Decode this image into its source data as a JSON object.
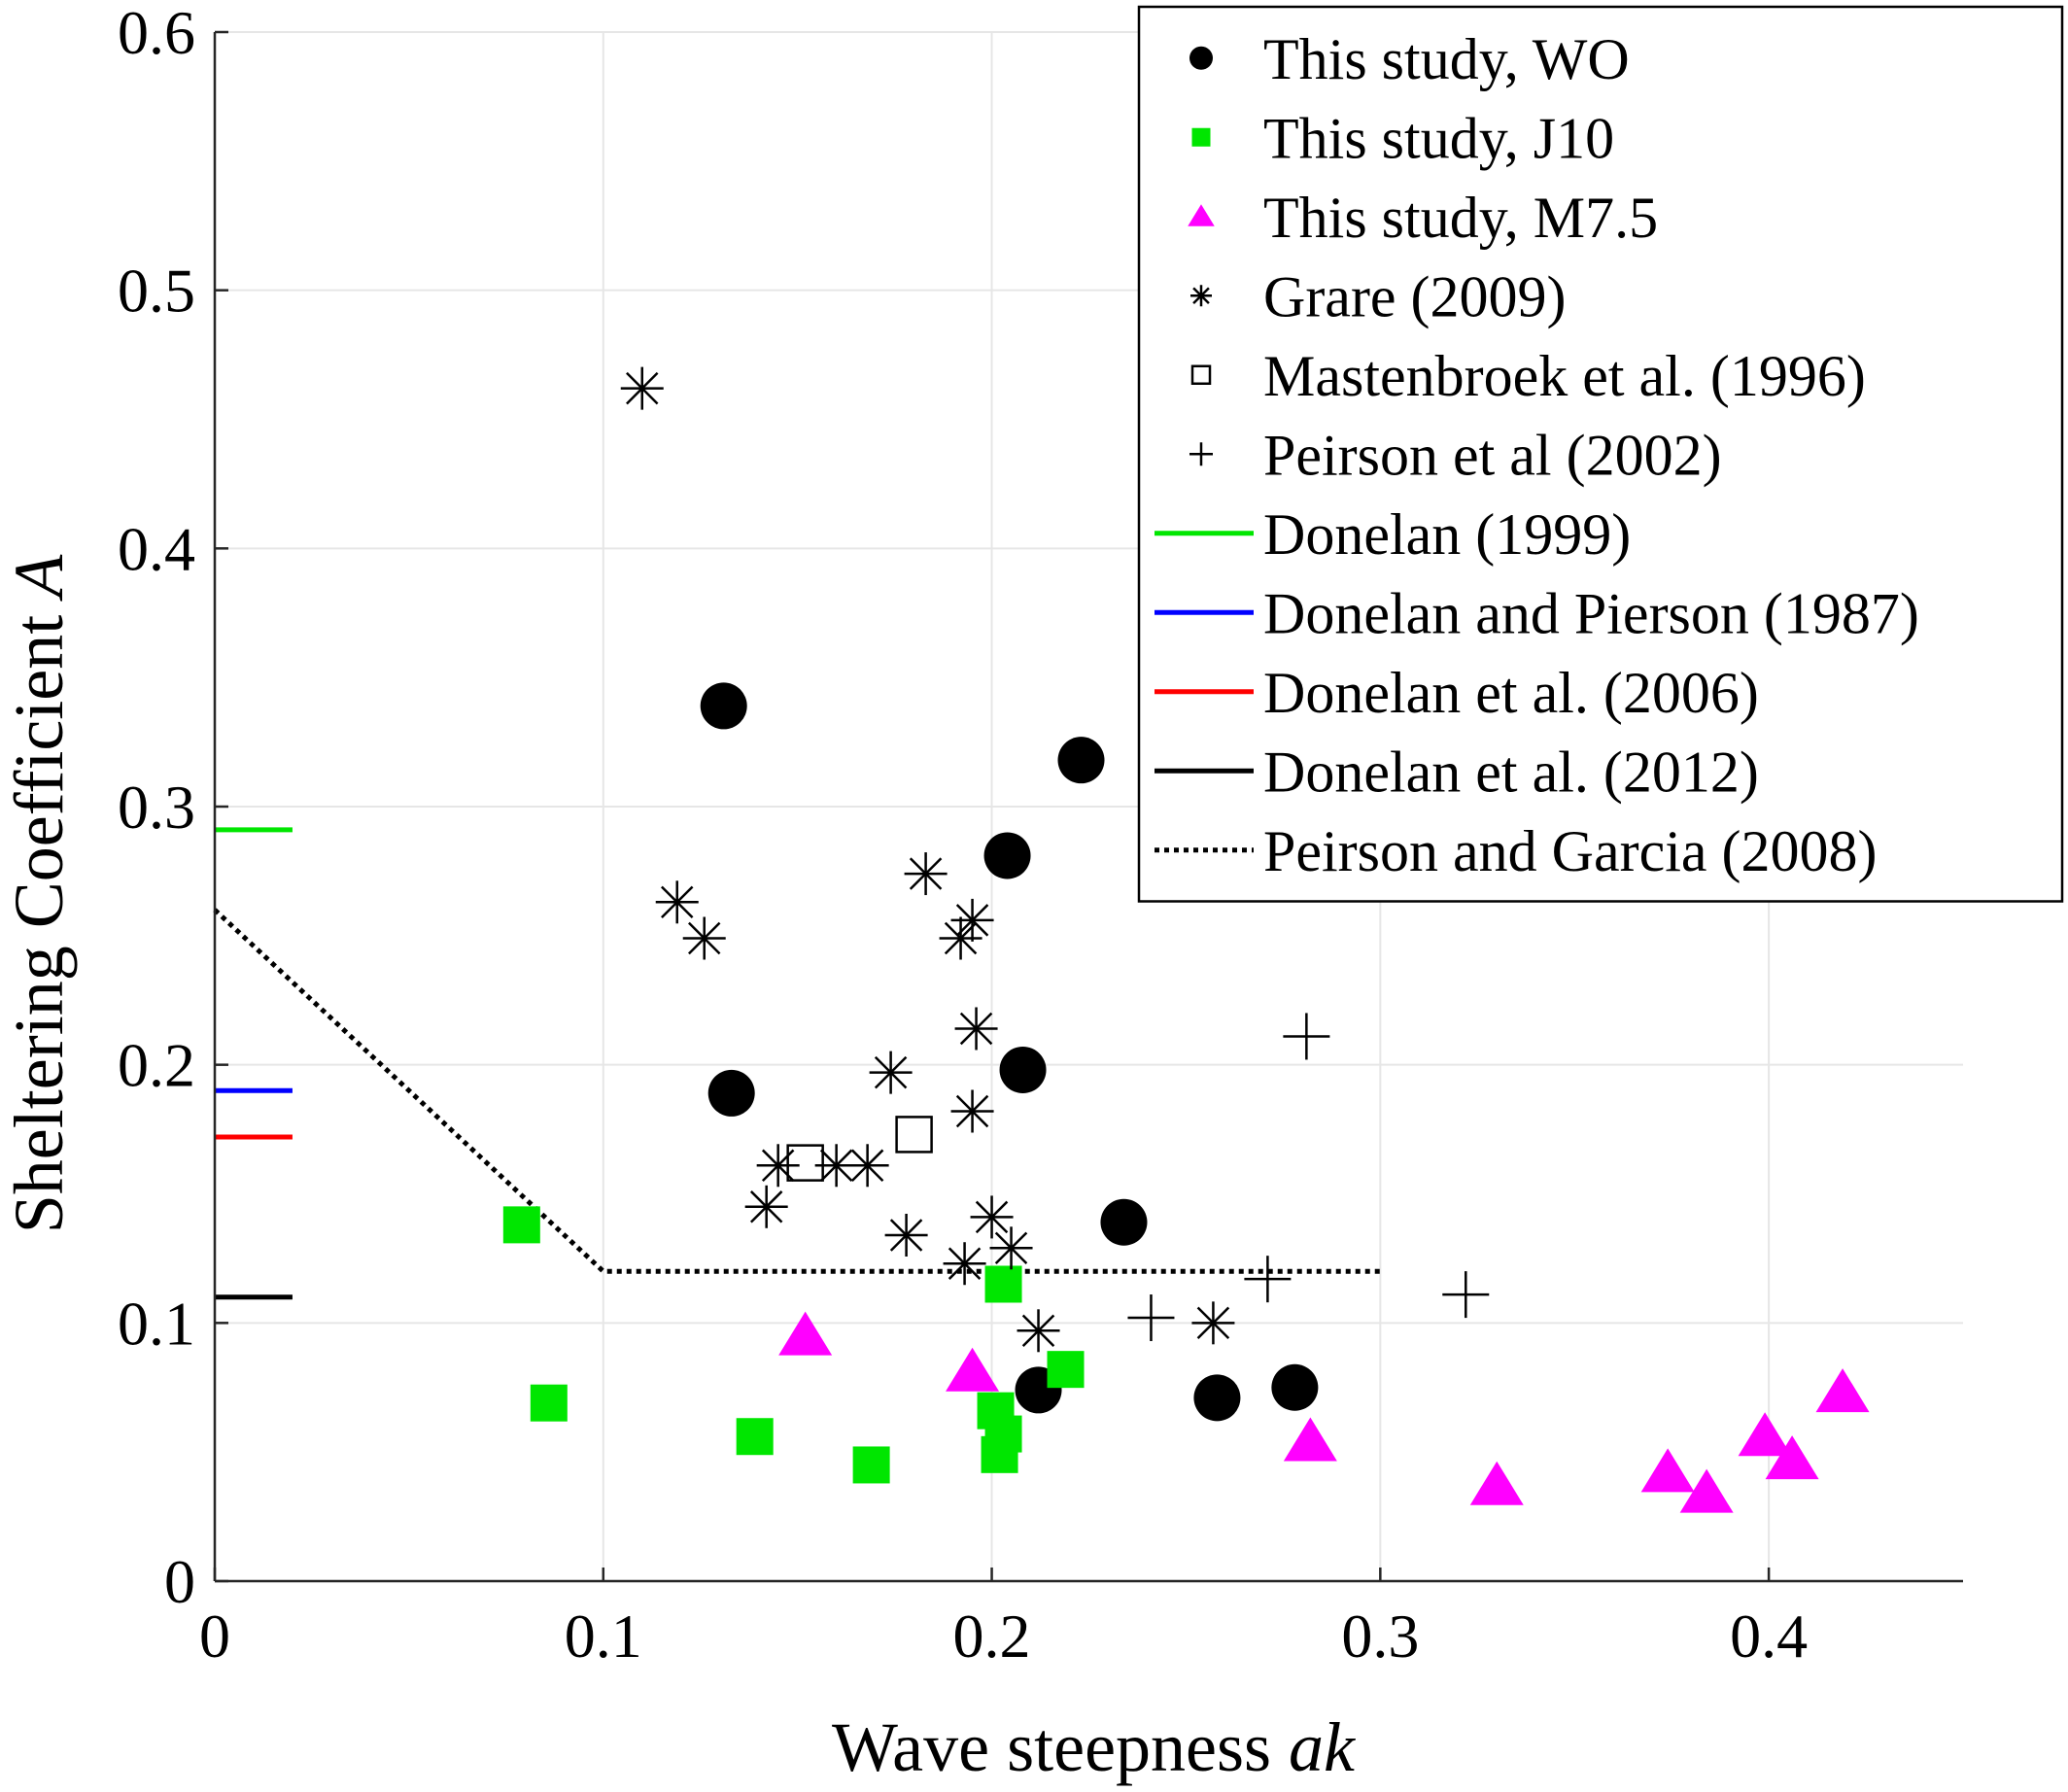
{
  "chart_data": {
    "type": "scatter",
    "xlabel": "Wave steepness ",
    "xlabel_italic": "ak",
    "ylabel": "Sheltering Coefficient ",
    "ylabel_italic": "A",
    "xlim": [
      0,
      0.45
    ],
    "ylim": [
      0,
      0.6
    ],
    "x_ticks": [
      0,
      0.1,
      0.2,
      0.3,
      0.4
    ],
    "x_tick_labels": [
      "0",
      "0.1",
      "0.2",
      "0.3",
      "0.4"
    ],
    "y_ticks": [
      0,
      0.1,
      0.2,
      0.3,
      0.4,
      0.5,
      0.6
    ],
    "y_tick_labels": [
      "0",
      "0.1",
      "0.2",
      "0.3",
      "0.4",
      "0.5",
      "0.6"
    ],
    "grid": true,
    "legend_position": "top-right",
    "series": [
      {
        "name": "This study, WO",
        "marker": "circle",
        "color": "#000000",
        "points": [
          [
            0.131,
            0.339
          ],
          [
            0.133,
            0.189
          ],
          [
            0.204,
            0.281
          ],
          [
            0.208,
            0.198
          ],
          [
            0.223,
            0.318
          ],
          [
            0.234,
            0.139
          ],
          [
            0.212,
            0.074
          ],
          [
            0.258,
            0.071
          ],
          [
            0.278,
            0.075
          ]
        ]
      },
      {
        "name": "This study, J10",
        "marker": "square",
        "color": "#00e600",
        "points": [
          [
            0.079,
            0.138
          ],
          [
            0.086,
            0.069
          ],
          [
            0.139,
            0.056
          ],
          [
            0.169,
            0.045
          ],
          [
            0.203,
            0.115
          ],
          [
            0.201,
            0.066
          ],
          [
            0.203,
            0.057
          ],
          [
            0.202,
            0.049
          ],
          [
            0.219,
            0.082
          ]
        ]
      },
      {
        "name": "This study, M7.5",
        "marker": "triangle",
        "color": "#ff00ff",
        "points": [
          [
            0.152,
            0.095
          ],
          [
            0.195,
            0.081
          ],
          [
            0.282,
            0.054
          ],
          [
            0.33,
            0.037
          ],
          [
            0.374,
            0.042
          ],
          [
            0.384,
            0.034
          ],
          [
            0.399,
            0.056
          ],
          [
            0.406,
            0.047
          ],
          [
            0.419,
            0.073
          ]
        ]
      },
      {
        "name": "Grare (2009)",
        "marker": "asterisk",
        "color": "#000000",
        "points": [
          [
            0.11,
            0.462
          ],
          [
            0.119,
            0.263
          ],
          [
            0.126,
            0.249
          ],
          [
            0.142,
            0.145
          ],
          [
            0.145,
            0.161
          ],
          [
            0.16,
            0.161
          ],
          [
            0.168,
            0.161
          ],
          [
            0.174,
            0.197
          ],
          [
            0.178,
            0.134
          ],
          [
            0.183,
            0.274
          ],
          [
            0.192,
            0.249
          ],
          [
            0.195,
            0.256
          ],
          [
            0.196,
            0.214
          ],
          [
            0.195,
            0.182
          ],
          [
            0.193,
            0.123
          ],
          [
            0.2,
            0.141
          ],
          [
            0.205,
            0.129
          ],
          [
            0.212,
            0.097
          ],
          [
            0.257,
            0.1
          ]
        ]
      },
      {
        "name": "Mastenbroek et al. (1996)",
        "marker": "square-open",
        "color": "#000000",
        "points": [
          [
            0.152,
            0.162
          ],
          [
            0.18,
            0.173
          ]
        ]
      },
      {
        "name": "Peirson et al (2002)",
        "marker": "plus",
        "color": "#000000",
        "points": [
          [
            0.241,
            0.102
          ],
          [
            0.271,
            0.117
          ],
          [
            0.281,
            0.211
          ],
          [
            0.322,
            0.111
          ]
        ]
      }
    ],
    "reference_levels": [
      {
        "name": "Donelan (1999)",
        "value": 0.291,
        "color": "#00e600",
        "x_range": [
          0,
          0.02
        ]
      },
      {
        "name": "Donelan and Pierson (1987)",
        "value": 0.19,
        "color": "#0000ff",
        "x_range": [
          0,
          0.02
        ]
      },
      {
        "name": "Donelan et al. (2006)",
        "value": 0.172,
        "color": "#ff0000",
        "x_range": [
          0,
          0.02
        ]
      },
      {
        "name": "Donelan et al. (2012)",
        "value": 0.11,
        "color": "#000000",
        "x_range": [
          0,
          0.02
        ]
      }
    ],
    "dotted_line": {
      "name": "Peirson and Garcia (2008)",
      "points": [
        [
          0,
          0.26
        ],
        [
          0.1,
          0.12
        ],
        [
          0.3,
          0.12
        ]
      ]
    },
    "legend": [
      {
        "label": "This study, WO",
        "symbol": "circle",
        "color": "#000000"
      },
      {
        "label": "This study, J10",
        "symbol": "square",
        "color": "#00e600"
      },
      {
        "label": "This study, M7.5",
        "symbol": "triangle",
        "color": "#ff00ff"
      },
      {
        "label": "Grare (2009)",
        "symbol": "asterisk",
        "color": "#000000"
      },
      {
        "label": "Mastenbroek et al. (1996)",
        "symbol": "square-open",
        "color": "#000000"
      },
      {
        "label": "Peirson et al (2002)",
        "symbol": "plus",
        "color": "#000000"
      },
      {
        "label": "Donelan (1999)",
        "symbol": "line",
        "color": "#00e600"
      },
      {
        "label": "Donelan and Pierson (1987)",
        "symbol": "line",
        "color": "#0000ff"
      },
      {
        "label": "Donelan et al. (2006)",
        "symbol": "line",
        "color": "#ff0000"
      },
      {
        "label": "Donelan et al. (2012)",
        "symbol": "line",
        "color": "#000000"
      },
      {
        "label": "Peirson and Garcia (2008)",
        "symbol": "dotted",
        "color": "#000000"
      }
    ]
  }
}
